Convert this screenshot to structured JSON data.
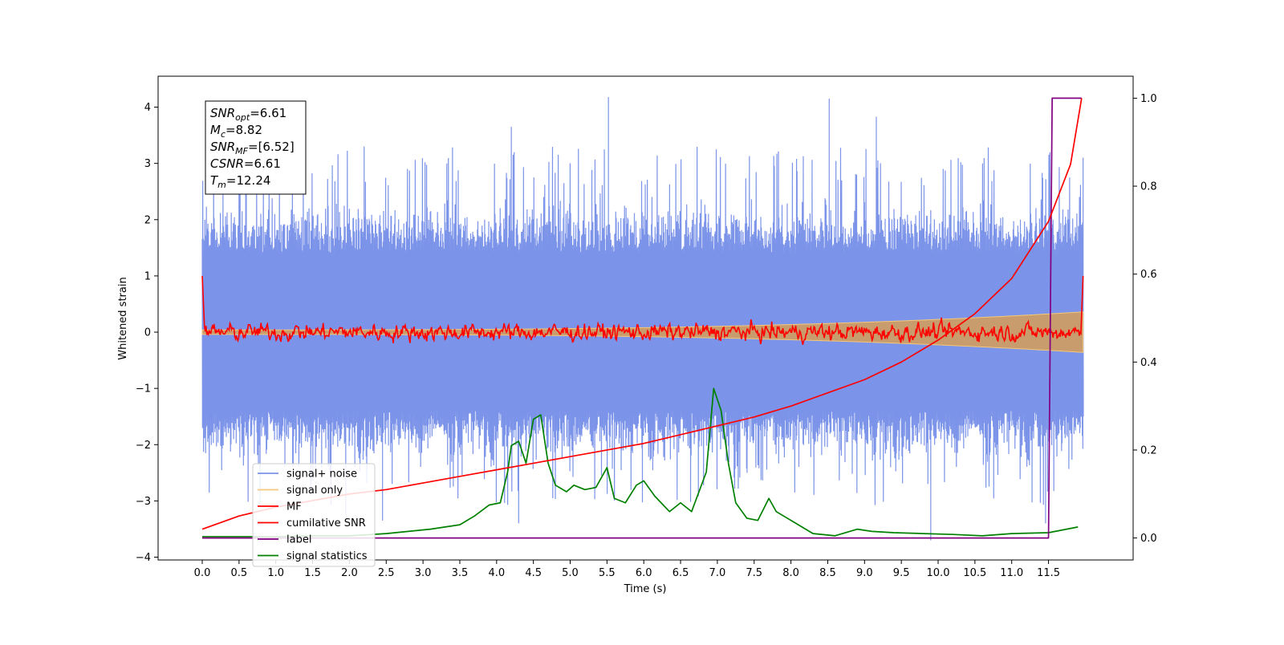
{
  "chart_data": {
    "type": "line",
    "xlabel": "Time (s)",
    "ylabel_left": "Whitened strain",
    "xlim": [
      -0.6,
      12.65
    ],
    "ylim_left": [
      -4.05,
      4.55
    ],
    "ylim_right": [
      -0.05,
      1.05
    ],
    "x_ticks": [
      "0.0",
      "0.5",
      "1.0",
      "1.5",
      "2.0",
      "2.5",
      "3.0",
      "3.5",
      "4.0",
      "4.5",
      "5.0",
      "5.5",
      "6.0",
      "6.5",
      "7.0",
      "7.5",
      "8.0",
      "8.5",
      "9.0",
      "9.5",
      "10.0",
      "10.5",
      "11.0",
      "11.5"
    ],
    "y_ticks_left": [
      "−4",
      "−3",
      "−2",
      "−1",
      "0",
      "1",
      "2",
      "3",
      "4"
    ],
    "y_ticks_right": [
      "0.0",
      "0.2",
      "0.4",
      "0.6",
      "0.8",
      "1.0"
    ],
    "grid": false,
    "legend_position": "lower-left",
    "annotation": {
      "lines": [
        {
          "sym": "SNR",
          "sub": "opt",
          "val": "=6.61"
        },
        {
          "sym": "M",
          "sub": "c",
          "val": "=8.82"
        },
        {
          "sym": "SNR",
          "sub": "MF",
          "val": "=[6.52]"
        },
        {
          "sym": "CSNR",
          "sub": "",
          "val": "=6.61"
        },
        {
          "sym": "T",
          "sub": "m",
          "val": "=12.24"
        }
      ]
    },
    "series": [
      {
        "name": "signal+ noise",
        "axis": "left",
        "color": "#7b93e8",
        "style": "noise band, amplitude ±2 to ±3 with spikes up to 4.18 and down to -3.8 over t=0..12"
      },
      {
        "name": "signal only",
        "axis": "left",
        "color": "#f5c87a",
        "style": "chirp envelope growing from ±0.05 at t=0 to ±0.35 at t=12"
      },
      {
        "name": "MF",
        "axis": "left",
        "color": "#ff0000",
        "style": "noisy trace around 0 (±0.3), starting at 1.0 at t=0 and ending at 1.0 at t=12"
      },
      {
        "name": "cumilative SNR",
        "axis": "right",
        "color": "#ff0000",
        "x": [
          0.0,
          0.5,
          1.0,
          1.5,
          2.0,
          2.5,
          3.0,
          3.5,
          4.0,
          4.5,
          5.0,
          5.5,
          6.0,
          6.5,
          7.0,
          7.5,
          8.0,
          8.5,
          9.0,
          9.5,
          10.0,
          10.5,
          11.0,
          11.5,
          11.8,
          11.95
        ],
        "values": [
          0.02,
          0.05,
          0.07,
          0.085,
          0.1,
          0.11,
          0.125,
          0.14,
          0.155,
          0.17,
          0.185,
          0.2,
          0.215,
          0.235,
          0.255,
          0.275,
          0.3,
          0.33,
          0.36,
          0.4,
          0.45,
          0.51,
          0.59,
          0.72,
          0.85,
          1.0
        ]
      },
      {
        "name": "label",
        "axis": "right",
        "color": "#800080",
        "x": [
          0.0,
          11.5,
          11.55,
          11.95
        ],
        "values": [
          0.0,
          0.0,
          1.0,
          1.0
        ]
      },
      {
        "name": "signal statistics",
        "axis": "right",
        "color": "#008000",
        "x": [
          0.0,
          0.5,
          1.0,
          1.5,
          2.0,
          2.5,
          2.8,
          3.1,
          3.3,
          3.5,
          3.7,
          3.9,
          4.05,
          4.15,
          4.2,
          4.3,
          4.4,
          4.5,
          4.6,
          4.7,
          4.8,
          4.95,
          5.05,
          5.2,
          5.35,
          5.5,
          5.6,
          5.75,
          5.9,
          6.0,
          6.15,
          6.35,
          6.5,
          6.65,
          6.85,
          6.95,
          7.05,
          7.15,
          7.25,
          7.4,
          7.55,
          7.7,
          7.8,
          7.9,
          8.05,
          8.3,
          8.6,
          8.9,
          9.1,
          9.4,
          9.8,
          10.2,
          10.6,
          11.0,
          11.5,
          11.9
        ],
        "values": [
          0.003,
          0.003,
          0.003,
          0.005,
          0.005,
          0.01,
          0.015,
          0.02,
          0.025,
          0.03,
          0.05,
          0.075,
          0.08,
          0.15,
          0.21,
          0.22,
          0.17,
          0.27,
          0.28,
          0.17,
          0.12,
          0.105,
          0.12,
          0.11,
          0.115,
          0.16,
          0.09,
          0.08,
          0.12,
          0.13,
          0.095,
          0.06,
          0.08,
          0.06,
          0.15,
          0.34,
          0.29,
          0.17,
          0.08,
          0.045,
          0.04,
          0.09,
          0.06,
          0.05,
          0.035,
          0.01,
          0.005,
          0.02,
          0.015,
          0.012,
          0.01,
          0.008,
          0.005,
          0.01,
          0.012,
          0.025
        ]
      }
    ]
  }
}
